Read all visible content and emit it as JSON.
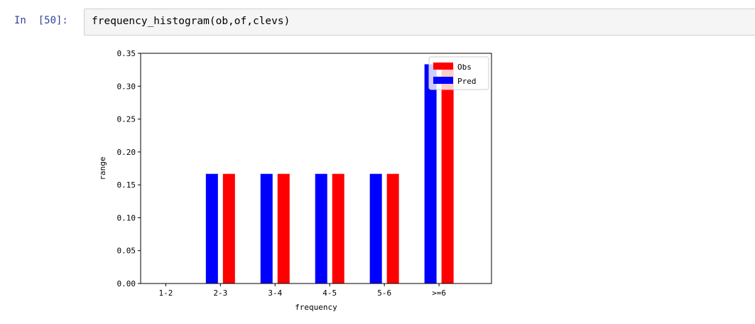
{
  "cell": {
    "prompt": "In  [50]:",
    "code": "frequency_histogram(ob,of,clevs)"
  },
  "chart_data": {
    "type": "bar",
    "categories": [
      "1-2",
      "2-3",
      "3-4",
      "4-5",
      "5-6",
      ">=6"
    ],
    "series": [
      {
        "name": "Pred",
        "values": [
          0,
          0.1667,
          0.1667,
          0.1667,
          0.1667,
          0.3333
        ],
        "color": "#0000ff"
      },
      {
        "name": "Obs",
        "values": [
          0,
          0.1667,
          0.1667,
          0.1667,
          0.1667,
          0.3333
        ],
        "color": "#ff0000"
      }
    ],
    "legend_order": [
      "Obs",
      "Pred"
    ],
    "legend": "top-right",
    "xlabel": "frequency",
    "ylabel": "range",
    "ylim": [
      0,
      0.35
    ],
    "yticks": [
      0.0,
      0.05,
      0.1,
      0.15,
      0.2,
      0.25,
      0.3,
      0.35
    ],
    "ytick_labels": [
      "0.00",
      "0.05",
      "0.10",
      "0.15",
      "0.20",
      "0.25",
      "0.30",
      "0.35"
    ],
    "grid": false
  }
}
